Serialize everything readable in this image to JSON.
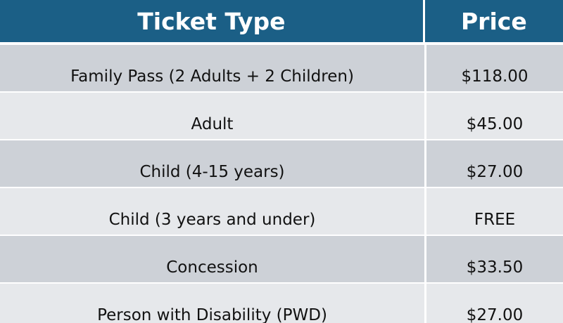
{
  "header": {
    "ticket_type": "Ticket Type",
    "price": "Price"
  },
  "colors": {
    "header_bg": "#1b5f86",
    "row_dark": "#cdd1d7",
    "row_light": "#e6e8eb"
  },
  "rows": [
    {
      "ticket_type": "Family Pass (2 Adults + 2 Children)",
      "price": "$118.00"
    },
    {
      "ticket_type": "Adult",
      "price": "$45.00"
    },
    {
      "ticket_type": "Child (4-15 years)",
      "price": "$27.00"
    },
    {
      "ticket_type": "Child (3 years and under)",
      "price": "FREE"
    },
    {
      "ticket_type": "Concession",
      "price": "$33.50"
    },
    {
      "ticket_type": "Person with Disability (PWD)",
      "price": "$27.00"
    }
  ]
}
